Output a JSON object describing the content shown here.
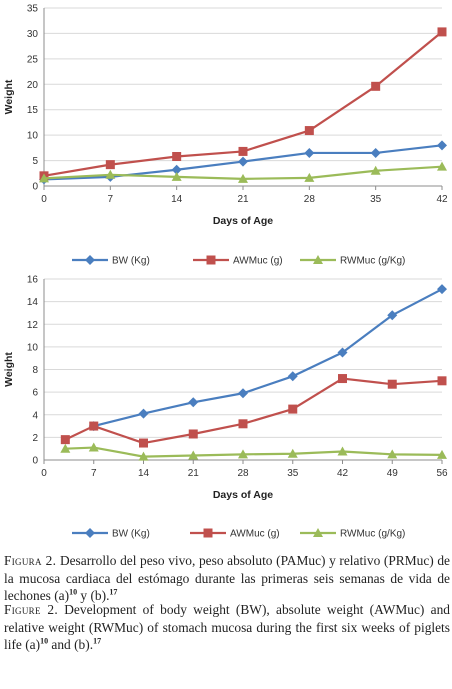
{
  "chart_data": [
    {
      "type": "line",
      "xlabel": "Days of Age",
      "ylabel": "Weight",
      "ylim": [
        0,
        35
      ],
      "yticks": [
        0,
        5,
        10,
        15,
        20,
        25,
        30,
        35
      ],
      "xlim": [
        0,
        42
      ],
      "xticks": [
        0,
        7,
        14,
        21,
        28,
        35,
        42
      ],
      "grid": "horizontal",
      "legend": "bottom",
      "series": [
        {
          "name": "BW (Kg)",
          "color": "#4a7ebf",
          "marker": "diamond",
          "x": [
            0,
            7,
            14,
            21,
            28,
            35,
            42
          ],
          "values": [
            1.3,
            1.8,
            3.2,
            4.8,
            6.5,
            6.5,
            8.0
          ]
        },
        {
          "name": "AWMuc (g)",
          "color": "#c0504d",
          "marker": "square",
          "x": [
            0,
            7,
            14,
            21,
            28,
            35,
            42
          ],
          "values": [
            2.0,
            4.2,
            5.8,
            6.8,
            10.9,
            19.6,
            30.3
          ]
        },
        {
          "name": "RWMuc (g/Kg)",
          "color": "#9bbb59",
          "marker": "triangle",
          "x": [
            0,
            7,
            14,
            21,
            28,
            35,
            42
          ],
          "values": [
            1.5,
            2.2,
            1.8,
            1.4,
            1.6,
            3.0,
            3.8
          ]
        }
      ]
    },
    {
      "type": "line",
      "xlabel": "Days of Age",
      "ylabel": "Weight",
      "ylim": [
        0,
        16
      ],
      "yticks": [
        0,
        2,
        4,
        6,
        8,
        10,
        12,
        14,
        16
      ],
      "xlim": [
        0,
        56
      ],
      "xticks": [
        0,
        7,
        14,
        21,
        28,
        35,
        42,
        49,
        56
      ],
      "grid": "horizontal",
      "legend": "bottom",
      "series": [
        {
          "name": "BW (Kg)",
          "color": "#4a7ebf",
          "marker": "diamond",
          "x": [
            7,
            14,
            21,
            28,
            35,
            42,
            49,
            56
          ],
          "values": [
            3.0,
            4.1,
            5.1,
            5.9,
            7.4,
            9.5,
            12.8,
            15.1
          ]
        },
        {
          "name": "AWMuc (g)",
          "color": "#c0504d",
          "marker": "square",
          "x": [
            3,
            7,
            14,
            21,
            28,
            35,
            42,
            49,
            56
          ],
          "values": [
            1.8,
            3.0,
            1.5,
            2.3,
            3.2,
            4.5,
            7.2,
            6.7,
            7.0
          ]
        },
        {
          "name": "RWMuc (g/Kg)",
          "color": "#9bbb59",
          "marker": "triangle",
          "x": [
            3,
            7,
            14,
            21,
            28,
            35,
            42,
            49,
            56
          ],
          "values": [
            1.0,
            1.1,
            0.3,
            0.4,
            0.5,
            0.55,
            0.75,
            0.5,
            0.45
          ]
        }
      ]
    }
  ],
  "captions": {
    "es": {
      "label": "Figura 2.",
      "text": "Desarrollo del peso vivo, peso absoluto (PAMuc) y relativo (PRMuc) de la mucosa cardiaca del estómago durante las primeras seis semanas de vida de lechones (a)",
      "ref_a": "10",
      "mid": " y (b).",
      "ref_b": "17"
    },
    "en": {
      "label": "Figure 2.",
      "text": "Development of body weight (BW), absolute weight (AWMuc) and relative weight (RWMuc) of stomach mucosa during the first six weeks of piglets life (a)",
      "ref_a": "10",
      "mid": " and (b).",
      "ref_b": "17"
    }
  }
}
